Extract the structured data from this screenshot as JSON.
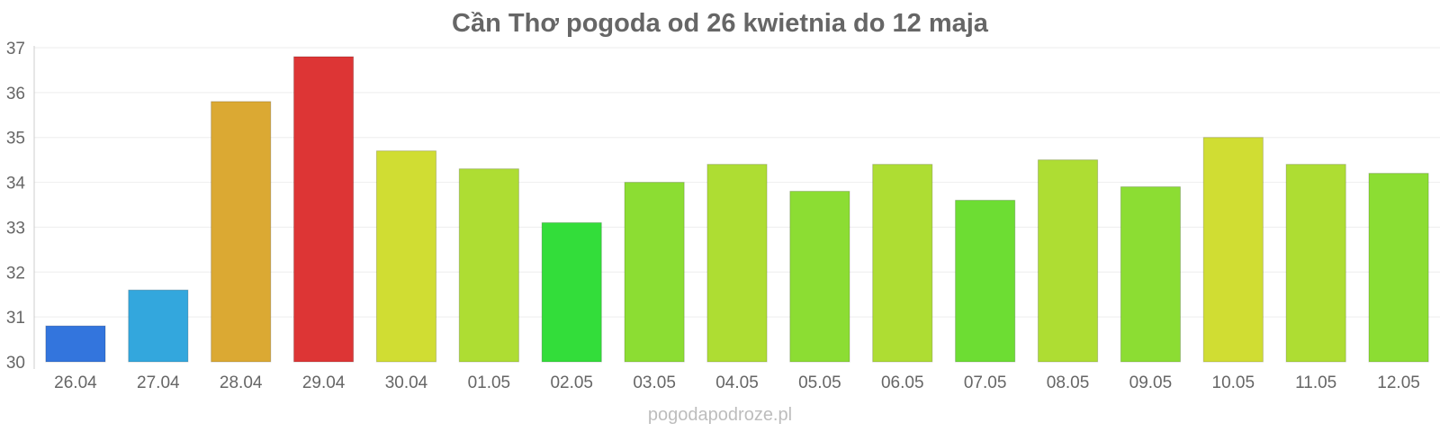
{
  "title": "Cần Thơ pogoda od 26 kwietnia do 12 maja",
  "watermark": "pogodapodroze.pl",
  "chart_data": {
    "type": "bar",
    "title": "Cần Thơ pogoda od 26 kwietnia do 12 maja",
    "xlabel": "",
    "ylabel": "",
    "ylim": [
      30,
      37
    ],
    "yticks": [
      "30",
      "31",
      "32",
      "33",
      "34",
      "35",
      "36",
      "37"
    ],
    "grid": true,
    "categories": [
      "26.04",
      "27.04",
      "28.04",
      "29.04",
      "30.04",
      "01.05",
      "02.05",
      "03.05",
      "04.05",
      "05.05",
      "06.05",
      "07.05",
      "08.05",
      "09.05",
      "10.05",
      "11.05",
      "12.05"
    ],
    "values": [
      30.8,
      31.6,
      35.8,
      36.8,
      34.7,
      34.3,
      33.1,
      34.0,
      34.4,
      33.8,
      34.4,
      33.6,
      34.5,
      33.9,
      35.0,
      34.4,
      34.2
    ],
    "colors": [
      "#3375dd",
      "#33a7dd",
      "#dba933",
      "#dd3535",
      "#d0dd33",
      "#aedd33",
      "#33dd3a",
      "#8cdd33",
      "#aedd33",
      "#8cdd33",
      "#aedd33",
      "#6ddd33",
      "#aedd33",
      "#8cdd33",
      "#d0dd33",
      "#aedd33",
      "#8cdd33"
    ]
  }
}
